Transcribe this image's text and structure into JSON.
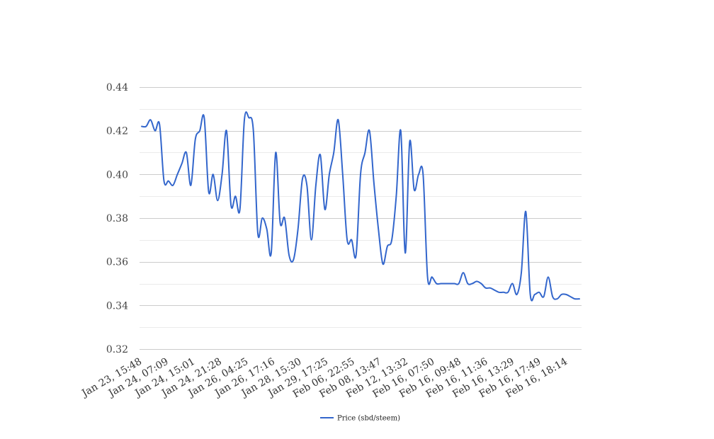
{
  "chart_data": {
    "type": "line",
    "title": "",
    "xlabel": "",
    "ylabel": "",
    "ylim": [
      0.32,
      0.44
    ],
    "yticks": [
      "0.32",
      "0.34",
      "0.36",
      "0.38",
      "0.40",
      "0.42",
      "0.44"
    ],
    "grid": true,
    "legend_position": "bottom-center",
    "x_tick_labels": [
      "Jan 23, 15:48",
      "Jan 24, 07:09",
      "Jan 24, 15:01",
      "Jan 24, 21:28",
      "Jan 26, 04:25",
      "Jan 26, 17:16",
      "Jan 28, 15:30",
      "Jan 29, 17:25",
      "Feb 06, 22:55",
      "Feb 08, 13:47",
      "Feb 12, 13:32",
      "Feb 16, 07:50",
      "Feb 16, 09:48",
      "Feb 16, 11:36",
      "Feb 16, 13:29",
      "Feb 16, 17:49",
      "Feb 16, 18:14"
    ],
    "series": [
      {
        "name": "Price (sbd/steem)",
        "color": "#3366cc",
        "values": [
          0.422,
          0.422,
          0.425,
          0.42,
          0.423,
          0.397,
          0.397,
          0.395,
          0.4,
          0.405,
          0.41,
          0.395,
          0.416,
          0.42,
          0.426,
          0.392,
          0.4,
          0.388,
          0.4,
          0.42,
          0.386,
          0.39,
          0.384,
          0.425,
          0.426,
          0.42,
          0.373,
          0.38,
          0.375,
          0.364,
          0.41,
          0.378,
          0.38,
          0.363,
          0.361,
          0.375,
          0.398,
          0.395,
          0.37,
          0.395,
          0.409,
          0.384,
          0.4,
          0.41,
          0.425,
          0.4,
          0.37,
          0.37,
          0.363,
          0.4,
          0.41,
          0.42,
          0.396,
          0.375,
          0.359,
          0.367,
          0.37,
          0.39,
          0.42,
          0.364,
          0.415,
          0.393,
          0.4,
          0.4,
          0.353,
          0.353,
          0.35,
          0.35,
          0.35,
          0.35,
          0.35,
          0.35,
          0.355,
          0.35,
          0.35,
          0.351,
          0.35,
          0.348,
          0.348,
          0.347,
          0.346,
          0.346,
          0.346,
          0.35,
          0.345,
          0.355,
          0.383,
          0.345,
          0.345,
          0.346,
          0.344,
          0.353,
          0.344,
          0.343,
          0.345,
          0.345,
          0.344,
          0.343,
          0.343
        ]
      }
    ]
  }
}
